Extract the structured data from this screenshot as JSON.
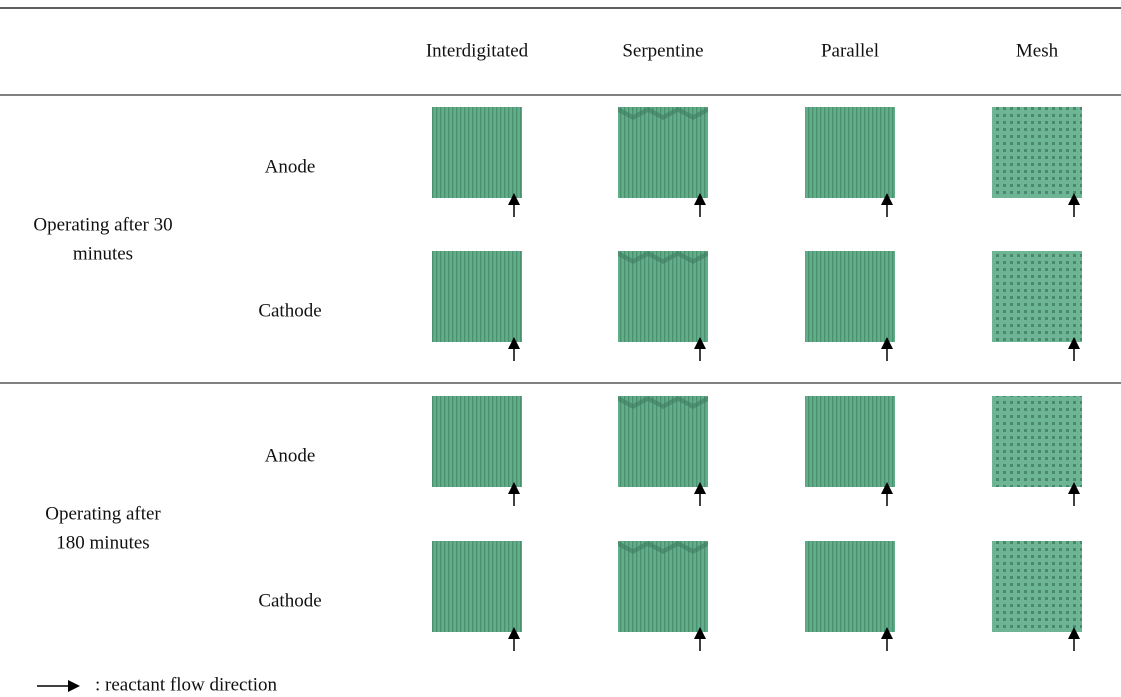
{
  "table": {
    "columns": [
      "Interdigitated",
      "Serpentine",
      "Parallel",
      "Mesh"
    ],
    "groups": [
      {
        "label": [
          "Operating after 30",
          "minutes"
        ],
        "rows": [
          "Anode",
          "Cathode"
        ]
      },
      {
        "label": [
          "Operating after",
          "180 minutes"
        ],
        "rows": [
          "Anode",
          "Cathode"
        ]
      }
    ]
  },
  "legend": ": reactant flow direction"
}
